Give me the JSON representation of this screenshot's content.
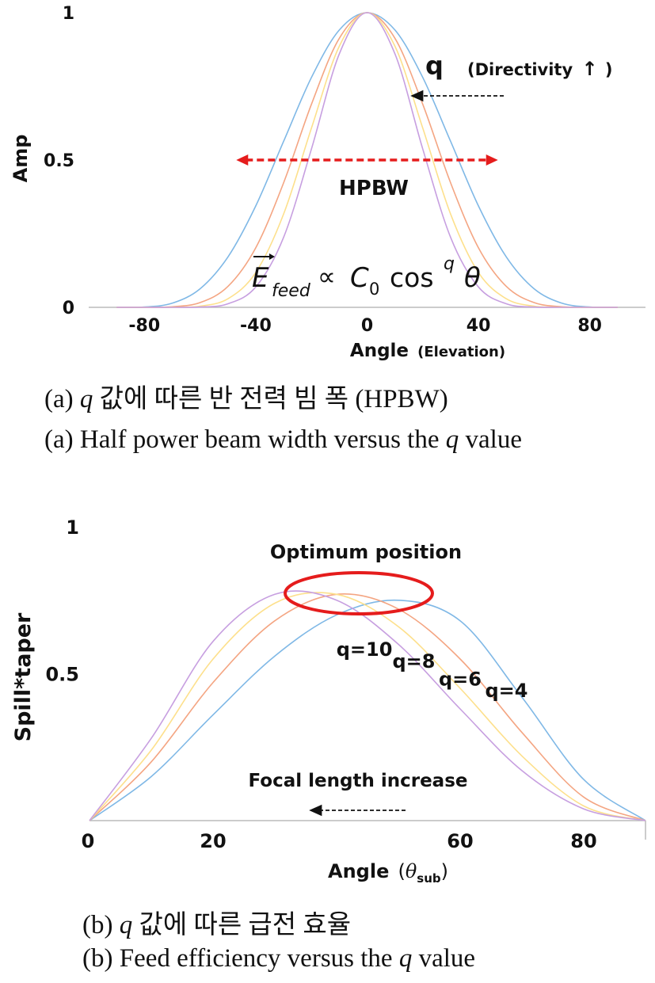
{
  "chart_data": [
    {
      "type": "line",
      "panel_label": "(a)",
      "ylabel": "Amp",
      "xlabel": "Angle",
      "xlabel_note": "(Elevation)",
      "xlim": [
        -100,
        100
      ],
      "ylim": [
        0,
        1
      ],
      "x_ticks": [
        "-80",
        "-40",
        "0",
        "40",
        "80"
      ],
      "y_ticks": [
        "0",
        "0.5",
        "1"
      ],
      "series": [
        {
          "q": 4,
          "color": "#7fb8e6",
          "x": [
            -90,
            -80,
            -70,
            -60,
            -50,
            -40,
            -30,
            -20,
            -10,
            0,
            10,
            20,
            30,
            40,
            50,
            60,
            70,
            80,
            90
          ],
          "values": [
            0,
            0.001,
            0.014,
            0.063,
            0.171,
            0.344,
            0.563,
            0.78,
            0.941,
            1,
            0.941,
            0.78,
            0.563,
            0.344,
            0.171,
            0.063,
            0.014,
            0.001,
            0
          ]
        },
        {
          "q": 6,
          "color": "#f4a582",
          "x": [
            -90,
            -80,
            -70,
            -60,
            -50,
            -40,
            -30,
            -20,
            -10,
            0,
            10,
            20,
            30,
            40,
            50,
            60,
            70,
            80,
            90
          ],
          "values": [
            0,
            0,
            0.002,
            0.016,
            0.071,
            0.202,
            0.422,
            0.689,
            0.913,
            1,
            0.913,
            0.689,
            0.422,
            0.202,
            0.071,
            0.016,
            0.002,
            0,
            0
          ]
        },
        {
          "q": 8,
          "color": "#fde08c",
          "x": [
            -90,
            -80,
            -70,
            -60,
            -50,
            -40,
            -30,
            -20,
            -10,
            0,
            10,
            20,
            30,
            40,
            50,
            60,
            70,
            80,
            90
          ],
          "values": [
            0,
            0,
            0,
            0.004,
            0.029,
            0.118,
            0.316,
            0.608,
            0.886,
            1,
            0.886,
            0.608,
            0.316,
            0.118,
            0.029,
            0.004,
            0,
            0,
            0
          ]
        },
        {
          "q": 10,
          "color": "#c79fe0",
          "x": [
            -90,
            -80,
            -70,
            -60,
            -50,
            -40,
            -30,
            -20,
            -10,
            0,
            10,
            20,
            30,
            40,
            50,
            60,
            70,
            80,
            90
          ],
          "values": [
            0,
            0,
            0,
            0.001,
            0.012,
            0.069,
            0.237,
            0.537,
            0.86,
            1,
            0.86,
            0.537,
            0.237,
            0.069,
            0.012,
            0.001,
            0,
            0,
            0
          ]
        }
      ],
      "annotations": {
        "q_label": "q",
        "directivity_label": "(Directivity",
        "directivity_arrow": "↑",
        "directivity_close": ")",
        "hpbw_label": "HPBW",
        "hpbw_range": [
          -47,
          47
        ],
        "formula": "E_feed ∝ C0 cos^q θ"
      }
    },
    {
      "type": "line",
      "panel_label": "(b)",
      "ylabel": "Spill*taper",
      "xlabel": "Angle",
      "xlabel_symbol": "θ",
      "xlabel_subscript": "sub",
      "xlim": [
        0,
        90
      ],
      "ylim": [
        0,
        1
      ],
      "x_ticks": [
        "0",
        "20",
        "60",
        "80"
      ],
      "y_ticks": [
        "0.5",
        "1"
      ],
      "series": [
        {
          "name": "q=4",
          "color": "#7fb8e6",
          "x": [
            0,
            10,
            20,
            30,
            40,
            50,
            60,
            70,
            80,
            90
          ],
          "values": [
            0,
            0.15,
            0.36,
            0.56,
            0.7,
            0.75,
            0.68,
            0.42,
            0.14,
            0
          ]
        },
        {
          "name": "q=6",
          "color": "#f4a582",
          "x": [
            0,
            10,
            20,
            30,
            40,
            50,
            60,
            70,
            80,
            90
          ],
          "values": [
            0,
            0.2,
            0.47,
            0.68,
            0.77,
            0.72,
            0.55,
            0.3,
            0.08,
            0
          ]
        },
        {
          "name": "q=8",
          "color": "#fde08c",
          "x": [
            0,
            10,
            20,
            30,
            40,
            50,
            60,
            70,
            80,
            90
          ],
          "values": [
            0,
            0.24,
            0.55,
            0.74,
            0.77,
            0.66,
            0.45,
            0.22,
            0.05,
            0
          ]
        },
        {
          "name": "q=10",
          "color": "#c79fe0",
          "x": [
            0,
            10,
            20,
            30,
            40,
            50,
            60,
            70,
            80,
            90
          ],
          "values": [
            0,
            0.28,
            0.61,
            0.77,
            0.75,
            0.6,
            0.38,
            0.17,
            0.04,
            0
          ]
        }
      ],
      "annotations": {
        "optimum_label": "Optimum position",
        "focal_label": "Focal length increase"
      }
    }
  ],
  "captions": {
    "a_korean_prefix": "(a)",
    "a_korean_q": "q",
    "a_korean_rest": "값에 따른 반 전력 빔 폭 (HPBW)",
    "a_english_prefix": "(a) Half power beam width versus the",
    "a_english_q": "q",
    "a_english_suffix": "value",
    "b_korean_prefix": "(b)",
    "b_korean_q": "q",
    "b_korean_rest": "값에 따른 급전 효율",
    "b_english_prefix": "(b) Feed efficiency versus the",
    "b_english_q": "q",
    "b_english_suffix": "value"
  }
}
